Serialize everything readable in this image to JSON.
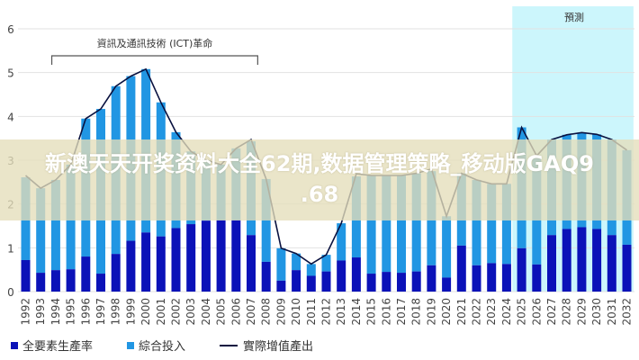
{
  "chart_data": {
    "type": "bar",
    "stacked": true,
    "title": "",
    "xlabel": "",
    "ylabel": "",
    "ylim": [
      0,
      6
    ],
    "yticks": [
      0,
      1,
      2,
      3,
      4,
      5,
      6
    ],
    "grid": true,
    "legend_position": "bottom-left",
    "categories": [
      "1992",
      "1993",
      "1994",
      "1995",
      "1996",
      "1997",
      "1998",
      "1999",
      "2000",
      "2001",
      "2002",
      "2003",
      "2004",
      "2005",
      "2006",
      "2007",
      "2008",
      "2009",
      "2010",
      "2011",
      "2012",
      "2013",
      "2014",
      "2015",
      "2016",
      "2017",
      "2018",
      "2019",
      "2020",
      "2021",
      "2022",
      "2023",
      "2024",
      "2025",
      "2026",
      "2027",
      "2028",
      "2029",
      "2030",
      "2031",
      "2032"
    ],
    "series": [
      {
        "name": "全要素生產率",
        "kind": "bar",
        "color": "#0b12b8",
        "values": [
          0.72,
          0.43,
          0.49,
          0.51,
          0.8,
          0.41,
          0.86,
          1.16,
          1.35,
          1.26,
          1.45,
          1.54,
          1.62,
          1.63,
          1.63,
          1.29,
          0.68,
          0.25,
          0.49,
          0.36,
          0.46,
          0.71,
          0.78,
          0.41,
          0.45,
          0.43,
          0.46,
          0.6,
          0.32,
          1.05,
          0.6,
          0.65,
          0.63,
          0.99,
          0.62,
          1.29,
          1.43,
          1.47,
          1.43,
          1.29,
          1.07
        ]
      },
      {
        "name": "綜合投入",
        "kind": "bar",
        "color": "#2196e3",
        "values": [
          1.89,
          1.93,
          2.06,
          2.39,
          3.15,
          3.76,
          3.83,
          3.76,
          3.73,
          3.06,
          2.19,
          1.66,
          1.38,
          1.27,
          1.64,
          2.14,
          1.89,
          0.74,
          0.38,
          0.27,
          0.38,
          0.85,
          1.85,
          2.24,
          2.2,
          2.22,
          2.24,
          2.15,
          1.4,
          1.65,
          1.95,
          1.81,
          1.83,
          2.76,
          2.48,
          2.18,
          2.15,
          2.16,
          2.16,
          2.18,
          2.16
        ]
      },
      {
        "name": "實際增值產出",
        "kind": "line",
        "color": "#0a1240",
        "values": [
          2.65,
          2.36,
          2.55,
          2.9,
          3.95,
          4.17,
          4.69,
          4.92,
          5.08,
          4.32,
          3.64,
          3.2,
          3.0,
          2.9,
          3.27,
          3.47,
          2.57,
          0.99,
          0.87,
          0.63,
          0.84,
          1.56,
          2.69,
          2.65,
          2.65,
          2.65,
          2.7,
          2.8,
          1.72,
          2.7,
          2.55,
          2.46,
          2.46,
          3.75,
          3.1,
          3.47,
          3.58,
          3.63,
          3.59,
          3.47,
          3.23
        ]
      }
    ],
    "annotations": {
      "ict_label": "資訊及通訊技術 (ICT)革命",
      "ict_range": [
        "1996",
        "2007"
      ],
      "forecast_label": "預測",
      "forecast_range": [
        "2025",
        "2032"
      ],
      "forecast_color": "#ccf6fc"
    }
  },
  "overlay": {
    "line1": "新澳天天开奖资料大全62期,数据管理策略_移动版GAQ9",
    "line2": ".68"
  }
}
